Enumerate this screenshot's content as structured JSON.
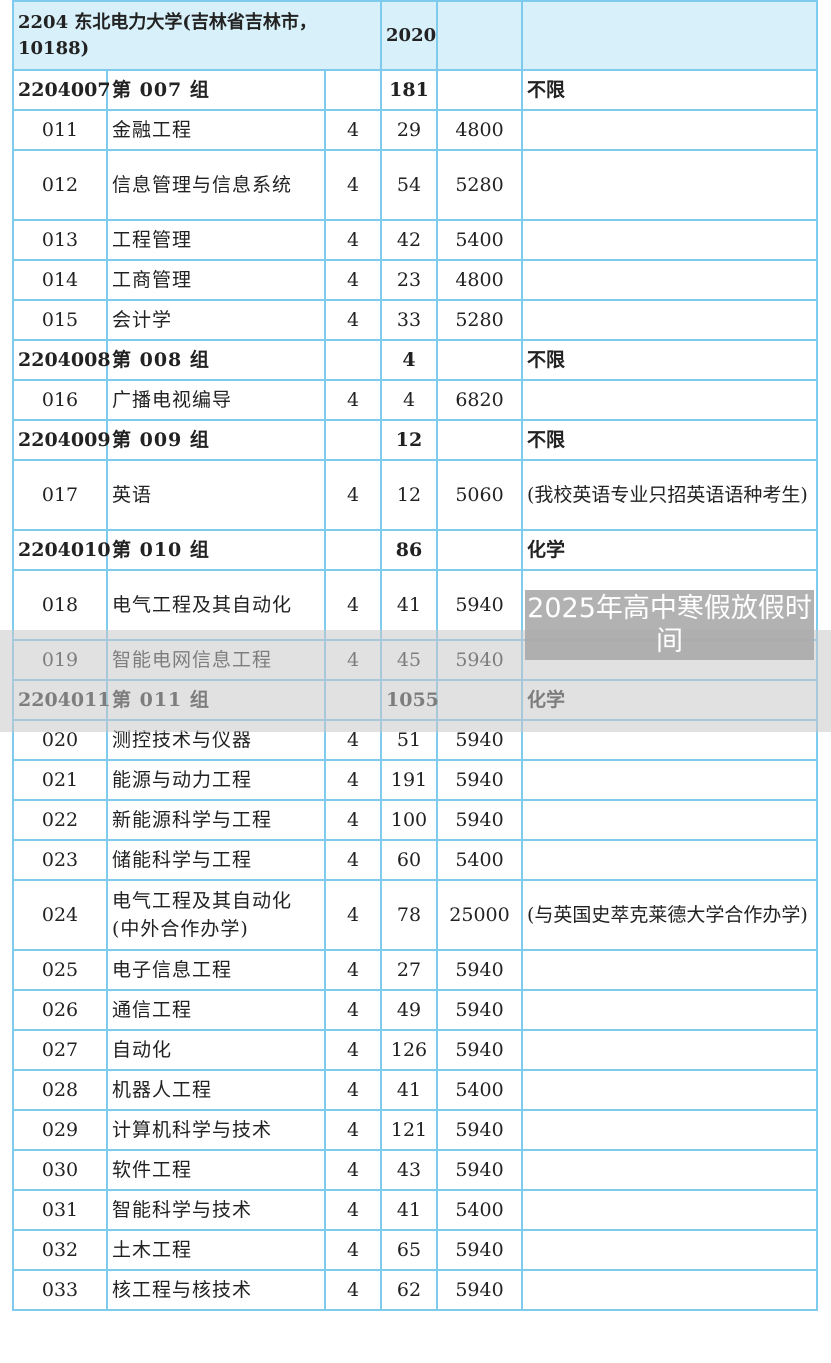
{
  "header": {
    "title": "2204 东北电力大学(吉林省吉林市，10188)",
    "year": "2020"
  },
  "rows": [
    {
      "type": "group",
      "code": "2204007",
      "name": "第 007 组",
      "years": "",
      "count": "181",
      "fee": "",
      "note": "不限"
    },
    {
      "type": "major",
      "code": "011",
      "name": "金融工程",
      "years": "4",
      "count": "29",
      "fee": "4800",
      "note": ""
    },
    {
      "type": "major",
      "code": "012",
      "name": "信息管理与信息系统",
      "years": "4",
      "count": "54",
      "fee": "5280",
      "note": ""
    },
    {
      "type": "major",
      "code": "013",
      "name": "工程管理",
      "years": "4",
      "count": "42",
      "fee": "5400",
      "note": ""
    },
    {
      "type": "major",
      "code": "014",
      "name": "工商管理",
      "years": "4",
      "count": "23",
      "fee": "4800",
      "note": ""
    },
    {
      "type": "major",
      "code": "015",
      "name": "会计学",
      "years": "4",
      "count": "33",
      "fee": "5280",
      "note": ""
    },
    {
      "type": "group",
      "code": "2204008",
      "name": "第 008 组",
      "years": "",
      "count": "4",
      "fee": "",
      "note": "不限"
    },
    {
      "type": "major",
      "code": "016",
      "name": "广播电视编导",
      "years": "4",
      "count": "4",
      "fee": "6820",
      "note": ""
    },
    {
      "type": "group",
      "code": "2204009",
      "name": "第 009 组",
      "years": "",
      "count": "12",
      "fee": "",
      "note": "不限"
    },
    {
      "type": "major",
      "code": "017",
      "name": "英语",
      "years": "4",
      "count": "12",
      "fee": "5060",
      "note": "(我校英语专业只招英语语种考生)"
    },
    {
      "type": "group",
      "code": "2204010",
      "name": "第 010 组",
      "years": "",
      "count": "86",
      "fee": "",
      "note": "化学"
    },
    {
      "type": "major",
      "code": "018",
      "name": "电气工程及其自动化",
      "years": "4",
      "count": "41",
      "fee": "5940",
      "note": ""
    },
    {
      "type": "major",
      "code": "019",
      "name": "智能电网信息工程",
      "years": "4",
      "count": "45",
      "fee": "5940",
      "note": ""
    },
    {
      "type": "group",
      "code": "2204011",
      "name": "第 011 组",
      "years": "",
      "count": "1055",
      "fee": "",
      "note": "化学"
    },
    {
      "type": "major",
      "code": "020",
      "name": "测控技术与仪器",
      "years": "4",
      "count": "51",
      "fee": "5940",
      "note": ""
    },
    {
      "type": "major",
      "code": "021",
      "name": "能源与动力工程",
      "years": "4",
      "count": "191",
      "fee": "5940",
      "note": ""
    },
    {
      "type": "major",
      "code": "022",
      "name": "新能源科学与工程",
      "years": "4",
      "count": "100",
      "fee": "5940",
      "note": ""
    },
    {
      "type": "major",
      "code": "023",
      "name": "储能科学与工程",
      "years": "4",
      "count": "60",
      "fee": "5400",
      "note": ""
    },
    {
      "type": "major",
      "code": "024",
      "name": "电气工程及其自动化(中外合作办学)",
      "years": "4",
      "count": "78",
      "fee": "25000",
      "note": "(与英国史萃克莱德大学合作办学)"
    },
    {
      "type": "major",
      "code": "025",
      "name": "电子信息工程",
      "years": "4",
      "count": "27",
      "fee": "5940",
      "note": ""
    },
    {
      "type": "major",
      "code": "026",
      "name": "通信工程",
      "years": "4",
      "count": "49",
      "fee": "5940",
      "note": ""
    },
    {
      "type": "major",
      "code": "027",
      "name": "自动化",
      "years": "4",
      "count": "126",
      "fee": "5940",
      "note": ""
    },
    {
      "type": "major",
      "code": "028",
      "name": "机器人工程",
      "years": "4",
      "count": "41",
      "fee": "5400",
      "note": ""
    },
    {
      "type": "major",
      "code": "029",
      "name": "计算机科学与技术",
      "years": "4",
      "count": "121",
      "fee": "5940",
      "note": ""
    },
    {
      "type": "major",
      "code": "030",
      "name": "软件工程",
      "years": "4",
      "count": "43",
      "fee": "5940",
      "note": ""
    },
    {
      "type": "major",
      "code": "031",
      "name": "智能科学与技术",
      "years": "4",
      "count": "41",
      "fee": "5400",
      "note": ""
    },
    {
      "type": "major",
      "code": "032",
      "name": "土木工程",
      "years": "4",
      "count": "65",
      "fee": "5940",
      "note": ""
    },
    {
      "type": "major",
      "code": "033",
      "name": "核工程与核技术",
      "years": "4",
      "count": "62",
      "fee": "5940",
      "note": ""
    }
  ],
  "overlay": {
    "text": "2025年高中寒假放假时间"
  },
  "colors": {
    "border": "#7fcbee",
    "header_bg": "#d8f0fa"
  }
}
